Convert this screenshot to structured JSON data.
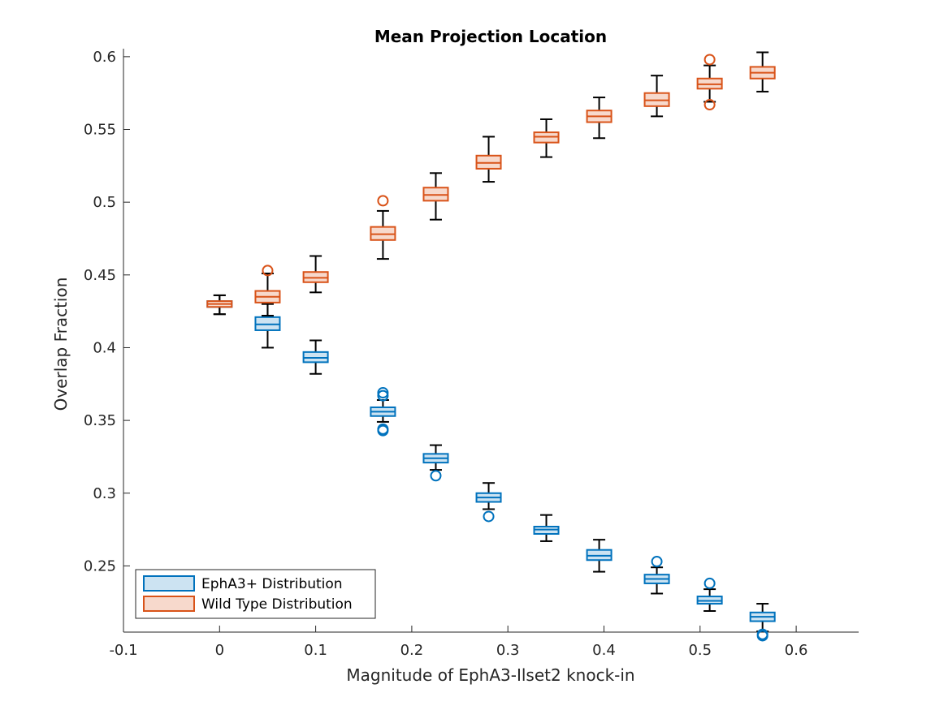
{
  "chart_data": {
    "type": "boxplot",
    "title": "Mean Projection Location",
    "xlabel": "Magnitude of EphA3-Ilset2 knock-in",
    "ylabel": "Overlap Fraction",
    "xlim": [
      -0.1,
      0.665
    ],
    "ylim": [
      0.2045,
      0.6055
    ],
    "xticks": [
      -0.1,
      0,
      0.1,
      0.2,
      0.3,
      0.4,
      0.5,
      0.6
    ],
    "xtick_labels": [
      "-0.1",
      "0",
      "0.1",
      "0.2",
      "0.3",
      "0.4",
      "0.5",
      "0.6"
    ],
    "yticks": [
      0.25,
      0.3,
      0.35,
      0.4,
      0.45,
      0.5,
      0.55,
      0.6
    ],
    "ytick_labels": [
      "0.25",
      "0.3",
      "0.35",
      "0.4",
      "0.45",
      "0.5",
      "0.55",
      "0.6"
    ],
    "legend_location": "bottom-left",
    "grid": false,
    "series": [
      {
        "name": "EphA3+ Distribution",
        "edge_color": "#0072BD",
        "fill_color": "#CCE3F2",
        "boxes": [
          {
            "x": 0,
            "min": 0.423,
            "q1": 0.428,
            "median": 0.43,
            "q3": 0.432,
            "max": 0.436,
            "outliers": []
          },
          {
            "x": 0.05,
            "min": 0.4,
            "q1": 0.412,
            "median": 0.416,
            "q3": 0.421,
            "max": 0.43,
            "outliers": []
          },
          {
            "x": 0.1,
            "min": 0.382,
            "q1": 0.39,
            "median": 0.393,
            "q3": 0.397,
            "max": 0.405,
            "outliers": []
          },
          {
            "x": 0.17,
            "min": 0.349,
            "q1": 0.353,
            "median": 0.356,
            "q3": 0.359,
            "max": 0.364,
            "outliers": [
              0.343,
              0.344,
              0.367,
              0.369
            ]
          },
          {
            "x": 0.225,
            "min": 0.316,
            "q1": 0.321,
            "median": 0.324,
            "q3": 0.327,
            "max": 0.333,
            "outliers": [
              0.312
            ]
          },
          {
            "x": 0.28,
            "min": 0.289,
            "q1": 0.294,
            "median": 0.297,
            "q3": 0.3,
            "max": 0.307,
            "outliers": [
              0.284
            ]
          },
          {
            "x": 0.34,
            "min": 0.267,
            "q1": 0.272,
            "median": 0.275,
            "q3": 0.277,
            "max": 0.285,
            "outliers": []
          },
          {
            "x": 0.395,
            "min": 0.246,
            "q1": 0.254,
            "median": 0.257,
            "q3": 0.261,
            "max": 0.268,
            "outliers": []
          },
          {
            "x": 0.455,
            "min": 0.231,
            "q1": 0.238,
            "median": 0.241,
            "q3": 0.244,
            "max": 0.249,
            "outliers": [
              0.253
            ]
          },
          {
            "x": 0.51,
            "min": 0.219,
            "q1": 0.224,
            "median": 0.226,
            "q3": 0.229,
            "max": 0.234,
            "outliers": [
              0.238
            ]
          },
          {
            "x": 0.565,
            "min": 0.205,
            "q1": 0.212,
            "median": 0.215,
            "q3": 0.218,
            "max": 0.224,
            "outliers": [
              0.202,
              0.203
            ]
          }
        ]
      },
      {
        "name": "Wild Type Distribution",
        "edge_color": "#D95319",
        "fill_color": "#F7D9CC",
        "boxes": [
          {
            "x": 0,
            "min": 0.423,
            "q1": 0.428,
            "median": 0.43,
            "q3": 0.432,
            "max": 0.436,
            "outliers": []
          },
          {
            "x": 0.05,
            "min": 0.422,
            "q1": 0.431,
            "median": 0.435,
            "q3": 0.439,
            "max": 0.451,
            "outliers": [
              0.453
            ]
          },
          {
            "x": 0.1,
            "min": 0.438,
            "q1": 0.445,
            "median": 0.448,
            "q3": 0.452,
            "max": 0.463,
            "outliers": []
          },
          {
            "x": 0.17,
            "min": 0.461,
            "q1": 0.474,
            "median": 0.478,
            "q3": 0.483,
            "max": 0.494,
            "outliers": [
              0.501
            ]
          },
          {
            "x": 0.225,
            "min": 0.488,
            "q1": 0.501,
            "median": 0.505,
            "q3": 0.51,
            "max": 0.52,
            "outliers": []
          },
          {
            "x": 0.28,
            "min": 0.514,
            "q1": 0.523,
            "median": 0.527,
            "q3": 0.532,
            "max": 0.545,
            "outliers": []
          },
          {
            "x": 0.34,
            "min": 0.531,
            "q1": 0.541,
            "median": 0.545,
            "q3": 0.548,
            "max": 0.557,
            "outliers": []
          },
          {
            "x": 0.395,
            "min": 0.544,
            "q1": 0.555,
            "median": 0.559,
            "q3": 0.563,
            "max": 0.572,
            "outliers": []
          },
          {
            "x": 0.455,
            "min": 0.559,
            "q1": 0.566,
            "median": 0.57,
            "q3": 0.575,
            "max": 0.587,
            "outliers": []
          },
          {
            "x": 0.51,
            "min": 0.569,
            "q1": 0.578,
            "median": 0.581,
            "q3": 0.585,
            "max": 0.594,
            "outliers": [
              0.567,
              0.598
            ]
          },
          {
            "x": 0.565,
            "min": 0.576,
            "q1": 0.585,
            "median": 0.589,
            "q3": 0.593,
            "max": 0.603,
            "outliers": []
          }
        ]
      }
    ]
  }
}
